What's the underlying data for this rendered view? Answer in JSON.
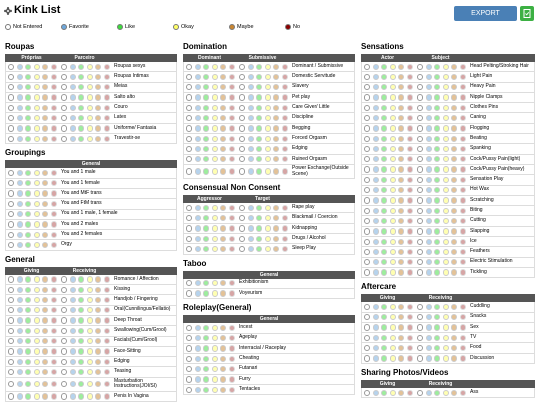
{
  "header": {
    "title": "Kink List",
    "export": "EXPORT"
  },
  "legend": [
    "Not Entered",
    "Favorite",
    "Like",
    "Okay",
    "Maybe",
    "No"
  ],
  "columns": [
    [
      {
        "title": "Roupas",
        "groups": [
          "Próprias",
          "Parceiro"
        ],
        "items": [
          "Roupas sexys",
          "Roupas Intimas",
          "Meias",
          "Salto alto",
          "Couro",
          "Latex",
          "Uniforme/ Fantasia",
          "Travestir-se"
        ]
      },
      {
        "title": "Groupings",
        "groups": [
          "General"
        ],
        "items": [
          "You and 1 male",
          "You and 1 female",
          "You and MtF trans",
          "You and FtM trans",
          "You and 1 male, 1 female",
          "You and 2 males",
          "You and 2 females",
          "Orgy"
        ]
      },
      {
        "title": "General",
        "groups": [
          "Giving",
          "Receiving"
        ],
        "items": [
          "Romance / Affection",
          "Kissing",
          "Handjob / Fingering",
          "Oral(Cunnilingus/Fellatio)",
          "Deep Throat",
          "Swallowing(Cum/Grool)",
          "Facials(Cum/Grool)",
          "Face-Sitting",
          "Edging",
          "Teasing",
          "Masturbation Instructions(JOI/SI)",
          "Penis In Vagina"
        ]
      }
    ],
    [
      {
        "title": "Domination",
        "groups": [
          "Dominant",
          "Submissive"
        ],
        "items": [
          "Dominant / Submissive",
          "Domestic Servitude",
          "Slavery",
          "Pet play",
          "Care Giver/ Little",
          "Discipline",
          "Begging",
          "Forced Orgasm",
          "Edging",
          "Ruined Orgasm",
          "Power Exchange(Outside Scene)"
        ]
      },
      {
        "title": "Consensual Non Consent",
        "groups": [
          "Aggressor",
          "Target"
        ],
        "items": [
          "Rape play",
          "Blackmail / Coercion",
          "Kidnapping",
          "Drugs / Alcohol",
          "Sleep Play"
        ]
      },
      {
        "title": "Taboo",
        "groups": [
          "General"
        ],
        "items": [
          "Exhibitionism",
          "Voyeurism"
        ]
      },
      {
        "title": "Roleplay(General)",
        "groups": [
          "General"
        ],
        "items": [
          "Incest",
          "Ageplay",
          "Interracial / Raceplay",
          "Cheating",
          "Futanari",
          "Furry",
          "Tentacles"
        ]
      }
    ],
    [
      {
        "title": "Sensations",
        "groups": [
          "Actor",
          "Subject"
        ],
        "items": [
          "Head Pelting/Stroking Hair",
          "Light Pain",
          "Heavy Pain",
          "Nipple Clamps",
          "Clothes Pins",
          "Caning",
          "Flogging",
          "Beating",
          "Spanking",
          "Cock/Pussy Pain(light)",
          "Cock/Pussy Pain(heavy)",
          "Sensation Play",
          "Hot Wax",
          "Scratching",
          "Biting",
          "Cutting",
          "Slapping",
          "Ice",
          "Feathers",
          "Electric Stimulation",
          "Tickling"
        ]
      },
      {
        "title": "Aftercare",
        "groups": [
          "Giving",
          "Receiving"
        ],
        "items": [
          "Cuddling",
          "Snacks",
          "Sex",
          "TV",
          "Food",
          "Discussion"
        ]
      },
      {
        "title": "Sharing Photos/Videos",
        "groups": [
          "Giving",
          "Receiving"
        ],
        "items": [
          "Ass"
        ]
      }
    ]
  ]
}
